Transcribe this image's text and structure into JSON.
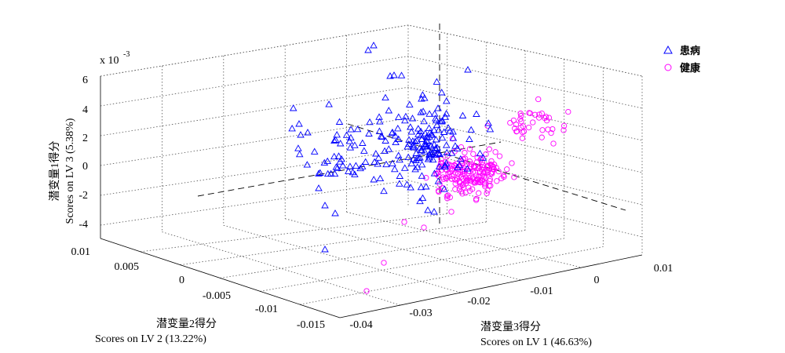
{
  "chart_data": {
    "type": "scatter3d",
    "exponent_label": "x 10",
    "exponent_power": "-3",
    "axes": {
      "z": {
        "label_line1": "潜变量1得分",
        "label_line2": "Scores on LV 3 (5.38%)",
        "ticks": [
          "6",
          "4",
          "2",
          "0",
          "-2",
          "-4"
        ],
        "range": [
          -5,
          6
        ]
      },
      "y": {
        "label_line1": "潜变量2得分",
        "label_line2": "Scores on LV 2 (13.22%)",
        "ticks": [
          "0.01",
          "0.005",
          "0",
          "-0.005",
          "-0.01",
          "-0.015"
        ],
        "range": [
          -0.015,
          0.01
        ]
      },
      "x": {
        "label_line1": "潜变量3得分",
        "label_line2": "Scores on LV 1 (46.63%)",
        "ticks": [
          "-0.04",
          "-0.03",
          "-0.02",
          "-0.01",
          "0",
          "0.01"
        ],
        "range": [
          -0.04,
          0.01
        ]
      }
    },
    "grid": true,
    "legend_position": "top-right",
    "series": [
      {
        "name": "患病",
        "marker": "triangle",
        "color": "#0000ff"
      },
      {
        "name": "健康",
        "marker": "circle",
        "color": "#ff00ff"
      }
    ]
  }
}
